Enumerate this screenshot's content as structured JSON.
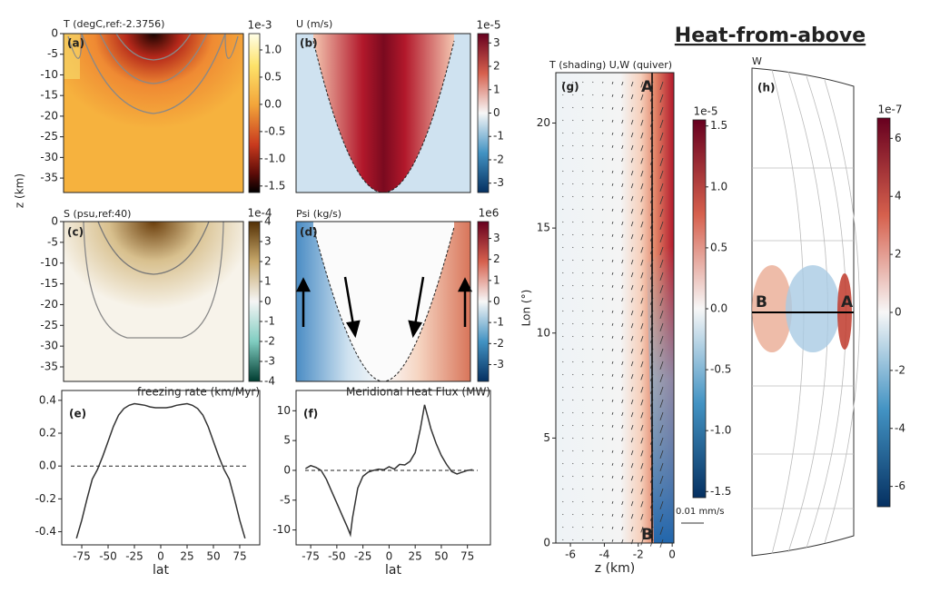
{
  "title": "Heat-from-above",
  "chart_data": [
    {
      "type": "heatmap",
      "title": "T (degC,ref:-2.3756)",
      "label": "(a)",
      "ylabel": "z (km)",
      "ylim": [
        -38.5,
        0
      ],
      "yticks": [
        0,
        -5,
        -10,
        -15,
        -20,
        -25,
        -30,
        -35
      ],
      "colorbar_exponent": "1e-3",
      "clim": [
        -1.62,
        1.3
      ],
      "cticks": [
        {
          "value": 1.0,
          "label": "1.0"
        },
        0.5,
        {
          "value": 0.0,
          "label": "0.0"
        },
        -0.5,
        {
          "value": -1.0,
          "label": "-1.0"
        },
        -1.5
      ]
    },
    {
      "type": "heatmap",
      "title": "U (m/s)",
      "label": "(b)",
      "colorbar_exponent": "1e-5",
      "clim": [
        -3.4,
        3.4
      ],
      "cticks": [
        3,
        2,
        1,
        0,
        -1,
        -2,
        -3
      ]
    },
    {
      "type": "heatmap",
      "title": "S (psu,ref:40)",
      "label": "(c)",
      "ylim": [
        -38.5,
        0
      ],
      "yticks": [
        0,
        -5,
        -10,
        -15,
        -20,
        -25,
        -30,
        -35
      ],
      "colorbar_exponent": "1e-4",
      "clim": [
        -4,
        4
      ],
      "cticks": [
        4,
        3,
        2,
        1,
        0,
        -1,
        -2,
        -3,
        -4
      ]
    },
    {
      "type": "heatmap",
      "title": "Psi (kg/s)",
      "label": "(d)",
      "colorbar_exponent": "1e6",
      "clim": [
        -3.8,
        3.8
      ],
      "cticks": [
        3,
        2,
        1,
        0,
        -1,
        -2,
        -3
      ]
    },
    {
      "type": "line",
      "title": "freezing rate (km/Myr)",
      "label": "(e)",
      "xlabel": "lat",
      "xlim": [
        -94,
        94
      ],
      "xticks": [
        -75,
        -50,
        -25,
        0,
        25,
        50,
        75
      ],
      "ylim": [
        -0.48,
        0.46
      ],
      "yticks": [
        -0.4,
        -0.2,
        {
          "value": 0.0,
          "label": "0.0"
        },
        0.2,
        0.4
      ],
      "color": "#333333",
      "x": [
        -80,
        -75,
        -70,
        -65,
        -60,
        -55,
        -50,
        -45,
        -40,
        -35,
        -30,
        -25,
        -20,
        -15,
        -10,
        -5,
        0,
        5,
        10,
        15,
        20,
        25,
        30,
        35,
        40,
        45,
        50,
        55,
        60,
        65,
        70,
        75,
        80
      ],
      "values": [
        -0.44,
        -0.33,
        -0.2,
        -0.08,
        -0.02,
        0.06,
        0.15,
        0.24,
        0.31,
        0.35,
        0.37,
        0.38,
        0.375,
        0.37,
        0.36,
        0.355,
        0.355,
        0.355,
        0.36,
        0.37,
        0.375,
        0.38,
        0.37,
        0.35,
        0.31,
        0.24,
        0.15,
        0.06,
        -0.02,
        -0.08,
        -0.2,
        -0.33,
        -0.44
      ]
    },
    {
      "type": "line",
      "title": "Meridional Heat Flux (MW)",
      "label": "(f)",
      "xlabel": "lat",
      "xlim": [
        -89,
        97
      ],
      "xticks": [
        -75,
        -50,
        -25,
        0,
        25,
        50,
        75
      ],
      "ylim": [
        -12.5,
        13.4
      ],
      "yticks": [
        -10,
        -5,
        0,
        5,
        10
      ],
      "color": "#333333",
      "x": [
        -80,
        -75,
        -70,
        -65,
        -60,
        -55,
        -50,
        -45,
        -40,
        -37,
        -35,
        -30,
        -25,
        -20,
        -15,
        -10,
        -5,
        0,
        5,
        10,
        15,
        20,
        25,
        30,
        34,
        37,
        40,
        45,
        50,
        55,
        60,
        65,
        70,
        75,
        80
      ],
      "values": [
        0.3,
        0.8,
        0.5,
        0,
        -1.5,
        -3.5,
        -5.5,
        -7.5,
        -9.5,
        -10.8,
        -8,
        -3,
        -1,
        -0.3,
        0,
        0.2,
        0.1,
        0.6,
        0.2,
        1.0,
        0.9,
        1.5,
        3,
        7,
        11,
        9,
        7,
        4.5,
        2.5,
        1,
        -0.2,
        -0.6,
        -0.3,
        0,
        0.1
      ]
    },
    {
      "type": "heatmap",
      "title": "T (shading) U,W (quiver)",
      "label": "(g)",
      "xlabel": "z (km)",
      "ylabel": "Lon (°)",
      "xlim": [
        -6.86,
        0.1
      ],
      "xticks": [
        -6,
        -4,
        -2,
        0
      ],
      "ylim": [
        0,
        22.4
      ],
      "yticks": [
        0,
        5,
        10,
        15,
        20
      ],
      "annotations": [
        "A",
        "B"
      ],
      "quiver_key": "0.01 mm/s",
      "colorbar_exponent": "1e-5",
      "clim": [
        -1.55,
        1.55
      ],
      "cticks": [
        1.5,
        {
          "value": 1.0,
          "label": "1.0"
        },
        0.5,
        {
          "value": 0.0,
          "label": "0.0"
        },
        -0.5,
        {
          "value": -1.0,
          "label": "-1.0"
        },
        -1.5
      ]
    },
    {
      "type": "heatmap",
      "title": "W",
      "label": "(h)",
      "annotations": [
        "B",
        "A"
      ],
      "colorbar_exponent": "1e-7",
      "clim": [
        -6.7,
        6.7
      ],
      "cticks": [
        6,
        4,
        2,
        0,
        -2,
        -4,
        -6
      ]
    }
  ]
}
